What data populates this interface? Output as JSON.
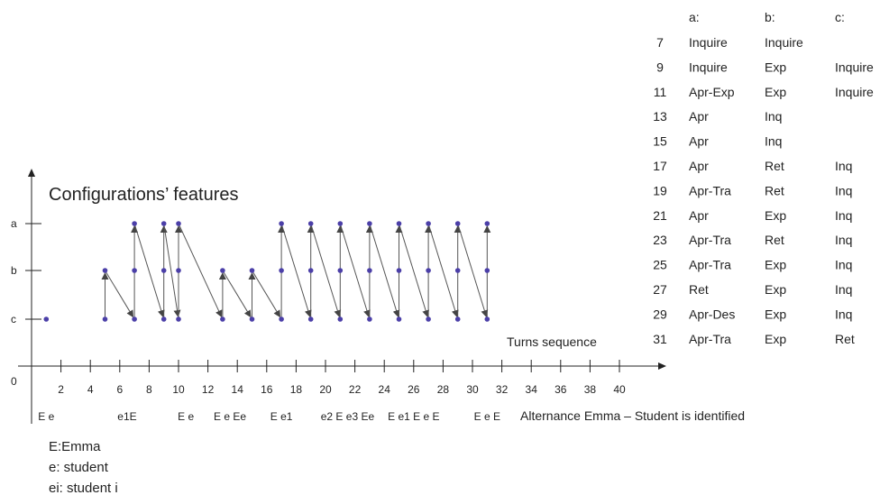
{
  "chart_data": {
    "type": "line",
    "title": "Configurations’ features",
    "xlabel": "Turns sequence",
    "x_ticks": [
      "2",
      "4",
      "6",
      "8",
      "10",
      "12",
      "14",
      "16",
      "18",
      "20",
      "22",
      "24",
      "26",
      "28",
      "30",
      "32",
      "34",
      "36",
      "38",
      "40"
    ],
    "origin_label": "0",
    "xlim": [
      0,
      40
    ],
    "y_categories": [
      "c",
      "b",
      "a"
    ],
    "points": [
      {
        "x": 1,
        "y": "c"
      },
      {
        "x": 5,
        "y": "c"
      },
      {
        "x": 5,
        "y": "b"
      },
      {
        "x": 7,
        "y": "c"
      },
      {
        "x": 7,
        "y": "b"
      },
      {
        "x": 7,
        "y": "a"
      },
      {
        "x": 9,
        "y": "c"
      },
      {
        "x": 9,
        "y": "b"
      },
      {
        "x": 9,
        "y": "a"
      },
      {
        "x": 10,
        "y": "c"
      },
      {
        "x": 10,
        "y": "b"
      },
      {
        "x": 10,
        "y": "a"
      },
      {
        "x": 13,
        "y": "c"
      },
      {
        "x": 13,
        "y": "b"
      },
      {
        "x": 15,
        "y": "c"
      },
      {
        "x": 15,
        "y": "b"
      },
      {
        "x": 17,
        "y": "c"
      },
      {
        "x": 17,
        "y": "b"
      },
      {
        "x": 17,
        "y": "a"
      },
      {
        "x": 19,
        "y": "c"
      },
      {
        "x": 19,
        "y": "b"
      },
      {
        "x": 19,
        "y": "a"
      },
      {
        "x": 21,
        "y": "c"
      },
      {
        "x": 21,
        "y": "b"
      },
      {
        "x": 21,
        "y": "a"
      },
      {
        "x": 23,
        "y": "c"
      },
      {
        "x": 23,
        "y": "b"
      },
      {
        "x": 23,
        "y": "a"
      },
      {
        "x": 25,
        "y": "c"
      },
      {
        "x": 25,
        "y": "b"
      },
      {
        "x": 25,
        "y": "a"
      },
      {
        "x": 27,
        "y": "c"
      },
      {
        "x": 27,
        "y": "b"
      },
      {
        "x": 27,
        "y": "a"
      },
      {
        "x": 29,
        "y": "c"
      },
      {
        "x": 29,
        "y": "b"
      },
      {
        "x": 29,
        "y": "a"
      },
      {
        "x": 31,
        "y": "c"
      },
      {
        "x": 31,
        "y": "b"
      },
      {
        "x": 31,
        "y": "a"
      }
    ],
    "arrows": [
      {
        "from": [
          5,
          "c"
        ],
        "to": [
          5,
          "b"
        ]
      },
      {
        "from": [
          5,
          "b"
        ],
        "to": [
          7,
          "c"
        ]
      },
      {
        "from": [
          7,
          "c"
        ],
        "to": [
          7,
          "a"
        ]
      },
      {
        "from": [
          7,
          "a"
        ],
        "to": [
          9,
          "c"
        ]
      },
      {
        "from": [
          9,
          "c"
        ],
        "to": [
          9,
          "a"
        ]
      },
      {
        "from": [
          9,
          "a"
        ],
        "to": [
          10,
          "c"
        ]
      },
      {
        "from": [
          10,
          "c"
        ],
        "to": [
          10,
          "a"
        ]
      },
      {
        "from": [
          10,
          "a"
        ],
        "to": [
          13,
          "c"
        ]
      },
      {
        "from": [
          13,
          "c"
        ],
        "to": [
          13,
          "b"
        ]
      },
      {
        "from": [
          13,
          "b"
        ],
        "to": [
          15,
          "c"
        ]
      },
      {
        "from": [
          15,
          "c"
        ],
        "to": [
          15,
          "b"
        ]
      },
      {
        "from": [
          15,
          "b"
        ],
        "to": [
          17,
          "c"
        ]
      },
      {
        "from": [
          17,
          "c"
        ],
        "to": [
          17,
          "a"
        ]
      },
      {
        "from": [
          17,
          "a"
        ],
        "to": [
          19,
          "c"
        ]
      },
      {
        "from": [
          19,
          "c"
        ],
        "to": [
          19,
          "a"
        ]
      },
      {
        "from": [
          19,
          "a"
        ],
        "to": [
          21,
          "c"
        ]
      },
      {
        "from": [
          21,
          "c"
        ],
        "to": [
          21,
          "a"
        ]
      },
      {
        "from": [
          21,
          "a"
        ],
        "to": [
          23,
          "c"
        ]
      },
      {
        "from": [
          23,
          "c"
        ],
        "to": [
          23,
          "a"
        ]
      },
      {
        "from": [
          23,
          "a"
        ],
        "to": [
          25,
          "c"
        ]
      },
      {
        "from": [
          25,
          "c"
        ],
        "to": [
          25,
          "a"
        ]
      },
      {
        "from": [
          25,
          "a"
        ],
        "to": [
          27,
          "c"
        ]
      },
      {
        "from": [
          27,
          "c"
        ],
        "to": [
          27,
          "a"
        ]
      },
      {
        "from": [
          27,
          "a"
        ],
        "to": [
          29,
          "c"
        ]
      },
      {
        "from": [
          29,
          "c"
        ],
        "to": [
          29,
          "a"
        ]
      },
      {
        "from": [
          29,
          "a"
        ],
        "to": [
          31,
          "c"
        ]
      },
      {
        "from": [
          31,
          "c"
        ],
        "to": [
          31,
          "a"
        ]
      }
    ],
    "colors": {
      "point": "#4b3fa8",
      "line": "#555555",
      "axis": "#222222"
    }
  },
  "sequence": {
    "label": "Alternance Emma – Student is identified",
    "items": [
      {
        "x": 1,
        "text": "E e"
      },
      {
        "x": 6.5,
        "text": "e1E"
      },
      {
        "x": 10.5,
        "text": "E e"
      },
      {
        "x": 13.5,
        "text": "E e Ee"
      },
      {
        "x": 17,
        "text": "E e1"
      },
      {
        "x": 21.5,
        "text": "e2 E e3 Ee"
      },
      {
        "x": 26,
        "text": "E e1 E e E"
      },
      {
        "x": 31,
        "text": "E e E"
      }
    ]
  },
  "legend": [
    "E:Emma",
    "e: student",
    "ei: student i"
  ],
  "table": {
    "headers": [
      "",
      "a:",
      "b:",
      "c:"
    ],
    "rows": [
      [
        "7",
        "Inquire",
        "Inquire",
        ""
      ],
      [
        "9",
        "Inquire",
        "Exp",
        "Inquire"
      ],
      [
        "11",
        "Apr-Exp",
        "Exp",
        "Inquire"
      ],
      [
        "13",
        "Apr",
        "Inq",
        ""
      ],
      [
        "15",
        "Apr",
        "Inq",
        ""
      ],
      [
        "17",
        "Apr",
        "Ret",
        "Inq"
      ],
      [
        "19",
        "Apr-Tra",
        "Ret",
        "Inq"
      ],
      [
        "21",
        "Apr",
        "Exp",
        "Inq"
      ],
      [
        "23",
        "Apr-Tra",
        "Ret",
        "Inq"
      ],
      [
        "25",
        "Apr-Tra",
        "Exp",
        "Inq"
      ],
      [
        "27",
        "Ret",
        "Exp",
        "Inq"
      ],
      [
        "29",
        "Apr-Des",
        "Exp",
        "Inq"
      ],
      [
        "31",
        "Apr-Tra",
        "Exp",
        "Ret"
      ]
    ]
  }
}
